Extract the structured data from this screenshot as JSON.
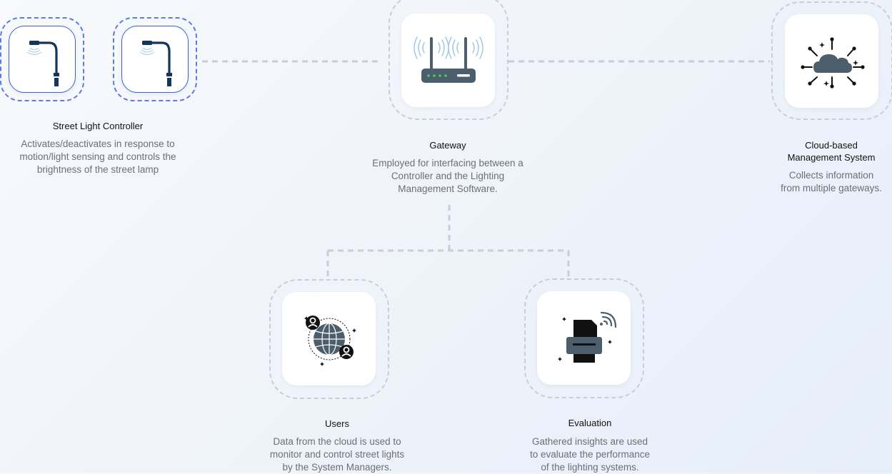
{
  "nodes": {
    "street_light": {
      "title": "Street Light Controller",
      "desc_lines": [
        "Activates/deactivates in response to",
        "motion/light sensing and controls the",
        "brightness of the street lamp"
      ]
    },
    "gateway": {
      "title": "Gateway",
      "desc_lines": [
        "Employed for interfacing between a",
        "Controller and the Lighting",
        "Management Software."
      ]
    },
    "cloud": {
      "title_lines": [
        "Cloud-based",
        "Management System"
      ],
      "desc_lines": [
        "Collects information",
        "from multiple gateways."
      ]
    },
    "users": {
      "title": "Users",
      "desc_lines": [
        "Data from the cloud is used to",
        "monitor and control street lights",
        "by the System Managers."
      ]
    },
    "evaluation": {
      "title": "Evaluation",
      "desc_lines": [
        "Gathered insights are used",
        "to evaluate the performance",
        "of the lighting systems."
      ]
    }
  },
  "colors": {
    "dashed_connector": "#c9ced6",
    "controller_border": "#3d5fd6",
    "lamp_navy": "#14355d",
    "device_slate": "#4c5d6c",
    "led_green": "#3fd16b",
    "wifi_blue": "#9fcbe6",
    "icon_dark": "#111111"
  }
}
